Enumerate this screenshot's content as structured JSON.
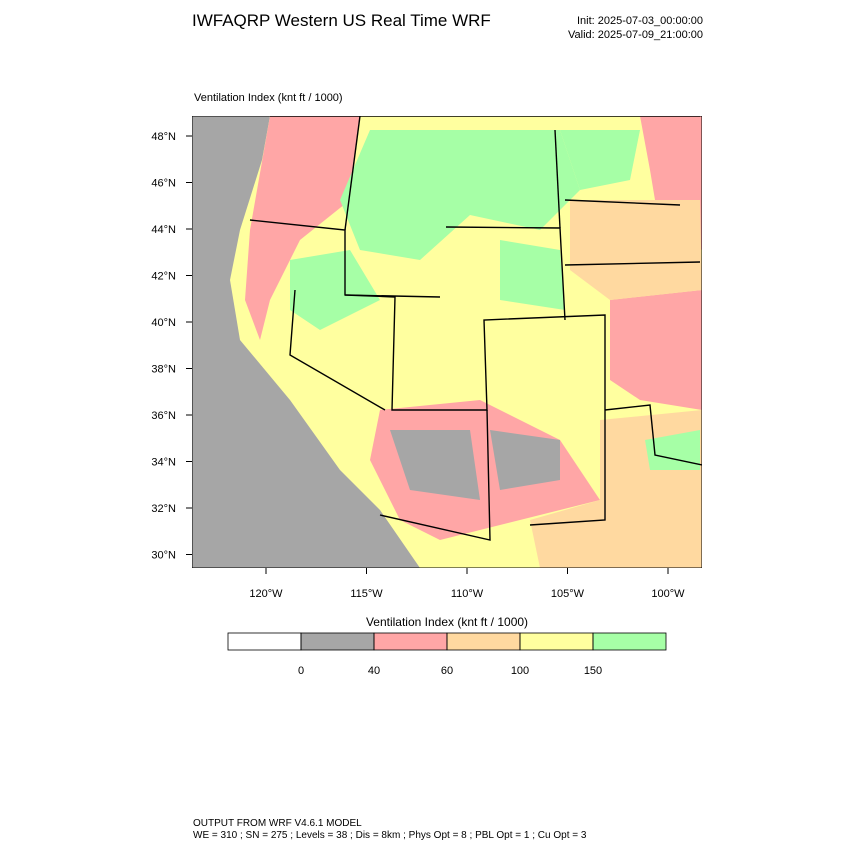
{
  "header": {
    "title": "IWFAQRP Western US Real Time WRF",
    "init": "Init: 2025-07-03_00:00:00",
    "valid": "Valid: 2025-07-09_21:00:00"
  },
  "map": {
    "label": "Ventilation Index   (knt ft / 1000)",
    "lat_labels": [
      "48°N",
      "46°N",
      "44°N",
      "42°N",
      "40°N",
      "38°N",
      "36°N",
      "34°N",
      "32°N",
      "30°N"
    ],
    "lon_labels": [
      "120°W",
      "115°W",
      "110°W",
      "105°W",
      "100°W"
    ]
  },
  "colorbar": {
    "title": "Ventilation Index   (knt ft / 1000)",
    "levels": [
      0,
      40,
      60,
      100,
      150
    ],
    "colors": [
      "#ffffff",
      "#a6a6a6",
      "#ffa6a6",
      "#ffd9a0",
      "#ffff9f",
      "#a6ffa6"
    ]
  },
  "footer": {
    "line1": "OUTPUT FROM WRF V4.6.1 MODEL",
    "line2": "WE = 310 ; SN = 275 ; Levels = 38 ; Dis = 8km ; Phys Opt = 8 ; PBL Opt = 1 ; Cu Opt = 3"
  }
}
